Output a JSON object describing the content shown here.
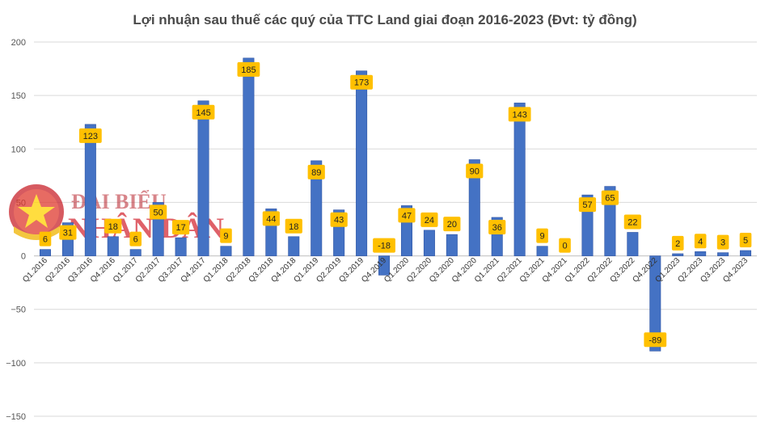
{
  "chart_data": {
    "type": "bar",
    "title": "Lợi nhuận sau thuế các quý của TTC Land giai đoạn 2016-2023 (Đvt: tỷ đồng)",
    "xlabel": "",
    "ylabel": "",
    "ylim": [
      -150,
      200
    ],
    "yticks": [
      200,
      150,
      100,
      50,
      0,
      -50,
      -100,
      -150
    ],
    "grid": true,
    "legend": "none",
    "categories": [
      "Q1.2016",
      "Q2.2016",
      "Q3.2016",
      "Q4.2016",
      "Q1.2017",
      "Q2.2017",
      "Q3.2017",
      "Q4.2017",
      "Q1.2018",
      "Q2.2018",
      "Q3.2018",
      "Q4.2018",
      "Q1.2019",
      "Q2.2019",
      "Q3.2019",
      "Q4.2019",
      "Q1.2020",
      "Q2.2020",
      "Q3.2020",
      "Q4.2020",
      "Q1.2021",
      "Q2.2021",
      "Q3.2021",
      "Q4.2021",
      "Q1.2022",
      "Q2.2022",
      "Q3.2022",
      "Q4.2022",
      "Q1.2023",
      "Q2.2023",
      "Q3.2023",
      "Q4.2023"
    ],
    "values": [
      6,
      31,
      123,
      18,
      6,
      50,
      17,
      145,
      9,
      185,
      44,
      18,
      89,
      43,
      173,
      -18,
      47,
      24,
      20,
      90,
      36,
      143,
      9,
      0,
      57,
      65,
      22,
      -89,
      2,
      4,
      3,
      5
    ],
    "colors": {
      "bar": "#4472c4",
      "bar_dark": "#2f55a4",
      "label_bg": "#ffc000",
      "grid": "#d9d9d9"
    }
  },
  "watermark": {
    "line1": "ĐẠI BIỂU",
    "line2": "NHÂN DÂN",
    "emblem": "vietnam-national-emblem"
  }
}
